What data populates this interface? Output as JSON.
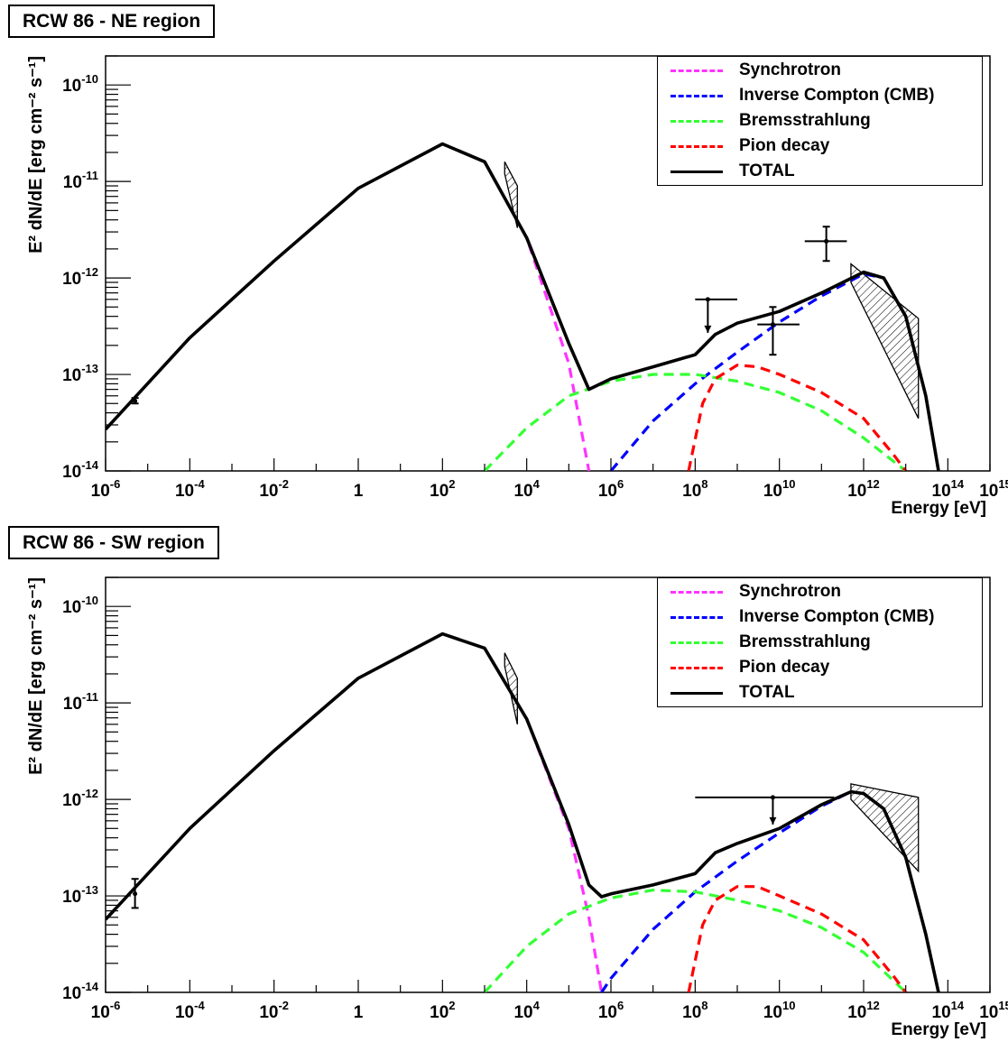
{
  "colors": {
    "synchrotron": "#ff33ff",
    "inverse_compton": "#0000ff",
    "bremsstrahlung": "#33ff33",
    "pion_decay": "#ff0000",
    "total": "#000000"
  },
  "chart_data": [
    {
      "type": "line",
      "title": "RCW 86 - NE region",
      "xlabel": "Energy [eV]",
      "ylabel": "E² dN/dE [erg cm⁻² s⁻¹]",
      "xscale": "log",
      "yscale": "log",
      "xlim": [
        1e-06,
        1000000000000000.0
      ],
      "ylim": [
        1e-14,
        2e-10
      ],
      "x_ticks": [
        {
          "v": 1e-06,
          "base": "10",
          "exp": "-6"
        },
        {
          "v": 0.0001,
          "base": "10",
          "exp": "-4"
        },
        {
          "v": 0.01,
          "base": "10",
          "exp": "-2"
        },
        {
          "v": 1,
          "base": "1",
          "exp": ""
        },
        {
          "v": 100.0,
          "base": "10",
          "exp": "2"
        },
        {
          "v": 10000.0,
          "base": "10",
          "exp": "4"
        },
        {
          "v": 1000000.0,
          "base": "10",
          "exp": "6"
        },
        {
          "v": 100000000.0,
          "base": "10",
          "exp": "8"
        },
        {
          "v": 10000000000.0,
          "base": "10",
          "exp": "10"
        },
        {
          "v": 1000000000000.0,
          "base": "10",
          "exp": "12"
        },
        {
          "v": 100000000000000.0,
          "base": "10",
          "exp": "14"
        },
        {
          "v": 1000000000000000.0,
          "base": "10",
          "exp": "15"
        }
      ],
      "y_ticks": [
        {
          "v": 1e-14,
          "base": "10",
          "exp": "-14"
        },
        {
          "v": 1e-13,
          "base": "10",
          "exp": "-13"
        },
        {
          "v": 1e-12,
          "base": "10",
          "exp": "-12"
        },
        {
          "v": 1e-11,
          "base": "10",
          "exp": "-11"
        },
        {
          "v": 1e-10,
          "base": "10",
          "exp": "-10"
        }
      ],
      "legend": {
        "position": "top-right",
        "entries": [
          {
            "name": "Synchrotron",
            "color": "#ff33ff",
            "style": "dashed"
          },
          {
            "name": "Inverse Compton (CMB)",
            "color": "#0000ff",
            "style": "dashed"
          },
          {
            "name": "Bremsstrahlung",
            "color": "#33ff33",
            "style": "dashed"
          },
          {
            "name": "Pion decay",
            "color": "#ff0000",
            "style": "dashed"
          },
          {
            "name": "TOTAL",
            "color": "#000000",
            "style": "solid"
          }
        ]
      },
      "series": [
        {
          "name": "Synchrotron",
          "style": "dashed",
          "color": "#ff33ff",
          "x": [
            1e-06,
            0.0001,
            0.01,
            1,
            100,
            1000,
            10000,
            100000,
            300000
          ],
          "y": [
            2.7e-14,
            2.4e-13,
            1.5e-12,
            8.5e-12,
            2.45e-11,
            1.6e-11,
            2.6e-12,
            1.3e-13,
            1e-14
          ]
        },
        {
          "name": "Inverse Compton (CMB)",
          "style": "dashed",
          "color": "#0000ff",
          "x": [
            1000000.0,
            10000000.0,
            100000000.0,
            1000000000.0,
            10000000000.0,
            100000000000.0,
            1000000000000.0,
            3000000000000.0,
            10000000000000.0,
            30000000000000.0,
            60000000000000.0
          ],
          "y": [
            1e-14,
            3.3e-14,
            8e-14,
            1.7e-13,
            3.5e-13,
            6.5e-13,
            1.1e-12,
            1e-12,
            4e-13,
            6e-14,
            1e-14
          ]
        },
        {
          "name": "Bremsstrahlung",
          "style": "dashed",
          "color": "#33ff33",
          "x": [
            1000,
            10000,
            100000,
            1000000.0,
            10000000.0,
            100000000.0,
            1000000000.0,
            10000000000.0,
            100000000000.0,
            1000000000000.0,
            10000000000000.0
          ],
          "y": [
            1e-14,
            2.8e-14,
            6e-14,
            8.5e-14,
            1e-13,
            1e-13,
            8.5e-14,
            6.5e-14,
            4.2e-14,
            2.2e-14,
            1e-14
          ]
        },
        {
          "name": "Pion decay",
          "style": "dashed",
          "color": "#ff0000",
          "x": [
            70000000.0,
            150000000.0,
            300000000.0,
            1000000000.0,
            3000000000.0,
            10000000000.0,
            100000000000.0,
            1000000000000.0,
            5000000000000.0,
            10000000000000.0
          ],
          "y": [
            1e-14,
            5e-14,
            9e-14,
            1.25e-13,
            1.2e-13,
            1e-13,
            6.5e-14,
            3.5e-14,
            1.5e-14,
            1e-14
          ]
        },
        {
          "name": "TOTAL",
          "style": "solid",
          "color": "#000000",
          "x": [
            1e-06,
            0.0001,
            0.01,
            1,
            100,
            1000,
            10000,
            100000,
            300000,
            1000000.0,
            10000000.0,
            100000000.0,
            300000000.0,
            1000000000.0,
            10000000000.0,
            100000000000.0,
            1000000000000.0,
            3000000000000.0,
            10000000000000.0,
            30000000000000.0,
            60000000000000.0
          ],
          "y": [
            2.7e-14,
            2.4e-13,
            1.5e-12,
            8.5e-12,
            2.45e-11,
            1.6e-11,
            2.6e-12,
            2.1e-13,
            7e-14,
            9e-14,
            1.2e-13,
            1.6e-13,
            2.6e-13,
            3.4e-13,
            4.5e-13,
            7e-13,
            1.15e-12,
            1e-12,
            4e-13,
            6e-14,
            1e-14
          ]
        }
      ],
      "data_points": [
        {
          "x": 5e-06,
          "y": 5.3e-14,
          "x_lo": 4.5e-06,
          "x_hi": 5.6e-06,
          "y_lo": 5e-14,
          "y_hi": 5.7e-14,
          "upper_limit": false
        },
        {
          "x": 200000000.0,
          "y": 6e-13,
          "x_lo": 100000000.0,
          "x_hi": 1000000000.0,
          "y_lo": 2.7e-13,
          "y_hi": 6e-13,
          "upper_limit": true
        },
        {
          "x": 7000000000.0,
          "y": 3.3e-13,
          "x_lo": 3000000000.0,
          "x_hi": 30000000000.0,
          "y_lo": 1.6e-13,
          "y_hi": 5e-13,
          "upper_limit": false
        },
        {
          "x": 130000000000.0,
          "y": 2.4e-12,
          "x_lo": 40000000000.0,
          "x_hi": 400000000000.0,
          "y_lo": 1.5e-12,
          "y_hi": 3.4e-12,
          "upper_limit": false
        }
      ],
      "bowties": [
        {
          "x1": 3000,
          "x2": 6000,
          "y1_lo": 1.2e-11,
          "y1_hi": 1.6e-11,
          "y2_lo": 3.3e-12,
          "y2_hi": 9e-12
        },
        {
          "x1": 500000000000.0,
          "x2": 20000000000000.0,
          "y1_lo": 9e-13,
          "y1_hi": 1.4e-12,
          "y2_lo": 3.5e-14,
          "y2_hi": 3.8e-13
        }
      ]
    },
    {
      "type": "line",
      "title": "RCW 86 - SW region",
      "xlabel": "Energy [eV]",
      "ylabel": "E² dN/dE [erg cm⁻² s⁻¹]",
      "xscale": "log",
      "yscale": "log",
      "xlim": [
        1e-06,
        1000000000000000.0
      ],
      "ylim": [
        1e-14,
        2e-10
      ],
      "x_ticks": [
        {
          "v": 1e-06,
          "base": "10",
          "exp": "-6"
        },
        {
          "v": 0.0001,
          "base": "10",
          "exp": "-4"
        },
        {
          "v": 0.01,
          "base": "10",
          "exp": "-2"
        },
        {
          "v": 1,
          "base": "1",
          "exp": ""
        },
        {
          "v": 100.0,
          "base": "10",
          "exp": "2"
        },
        {
          "v": 10000.0,
          "base": "10",
          "exp": "4"
        },
        {
          "v": 1000000.0,
          "base": "10",
          "exp": "6"
        },
        {
          "v": 100000000.0,
          "base": "10",
          "exp": "8"
        },
        {
          "v": 10000000000.0,
          "base": "10",
          "exp": "10"
        },
        {
          "v": 1000000000000.0,
          "base": "10",
          "exp": "12"
        },
        {
          "v": 100000000000000.0,
          "base": "10",
          "exp": "14"
        },
        {
          "v": 1000000000000000.0,
          "base": "10",
          "exp": "15"
        }
      ],
      "y_ticks": [
        {
          "v": 1e-14,
          "base": "10",
          "exp": "-14"
        },
        {
          "v": 1e-13,
          "base": "10",
          "exp": "-13"
        },
        {
          "v": 1e-12,
          "base": "10",
          "exp": "-12"
        },
        {
          "v": 1e-11,
          "base": "10",
          "exp": "-11"
        },
        {
          "v": 1e-10,
          "base": "10",
          "exp": "-10"
        }
      ],
      "legend": {
        "position": "top-right",
        "entries": [
          {
            "name": "Synchrotron",
            "color": "#ff33ff",
            "style": "dashed"
          },
          {
            "name": "Inverse Compton (CMB)",
            "color": "#0000ff",
            "style": "dashed"
          },
          {
            "name": "Bremsstrahlung",
            "color": "#33ff33",
            "style": "dashed"
          },
          {
            "name": "Pion decay",
            "color": "#ff0000",
            "style": "dashed"
          },
          {
            "name": "TOTAL",
            "color": "#000000",
            "style": "solid"
          }
        ]
      },
      "series": [
        {
          "name": "Synchrotron",
          "style": "dashed",
          "color": "#ff33ff",
          "x": [
            1e-06,
            0.0001,
            0.01,
            1,
            100,
            1000,
            10000,
            100000,
            300000,
            600000
          ],
          "y": [
            5.7e-14,
            5e-13,
            3.2e-12,
            1.8e-11,
            5.2e-11,
            3.7e-11,
            6.8e-12,
            5e-13,
            6e-14,
            1e-14
          ]
        },
        {
          "name": "Inverse Compton (CMB)",
          "style": "dashed",
          "color": "#0000ff",
          "x": [
            600000.0,
            1000000.0,
            10000000.0,
            100000000.0,
            1000000000.0,
            10000000000.0,
            100000000000.0,
            500000000000.0,
            1000000000000.0,
            3000000000000.0,
            10000000000000.0,
            30000000000000.0,
            60000000000000.0
          ],
          "y": [
            1e-14,
            1.4e-14,
            4.5e-14,
            1.1e-13,
            2.3e-13,
            4.5e-13,
            8.5e-13,
            1.2e-12,
            1.15e-12,
            8e-13,
            2.5e-13,
            4e-14,
            1e-14
          ]
        },
        {
          "name": "Bremsstrahlung",
          "style": "dashed",
          "color": "#33ff33",
          "x": [
            1000,
            10000,
            100000,
            1000000.0,
            10000000.0,
            100000000.0,
            1000000000.0,
            10000000000.0,
            100000000000.0,
            1000000000000.0,
            10000000000000.0
          ],
          "y": [
            1e-14,
            3e-14,
            6.5e-14,
            9.5e-14,
            1.15e-13,
            1.1e-13,
            9e-14,
            7e-14,
            4.7e-14,
            2.6e-14,
            1e-14
          ]
        },
        {
          "name": "Pion decay",
          "style": "dashed",
          "color": "#ff0000",
          "x": [
            70000000.0,
            150000000.0,
            300000000.0,
            1000000000.0,
            3000000000.0,
            10000000000.0,
            100000000000.0,
            1000000000000.0,
            5000000000000.0,
            10000000000000.0
          ],
          "y": [
            1e-14,
            5e-14,
            9e-14,
            1.25e-13,
            1.25e-13,
            1e-13,
            6.5e-14,
            3.5e-14,
            1.5e-14,
            1e-14
          ]
        },
        {
          "name": "TOTAL",
          "style": "solid",
          "color": "#000000",
          "x": [
            1e-06,
            0.0001,
            0.01,
            1,
            100,
            1000,
            10000,
            100000,
            300000,
            600000,
            1000000.0,
            10000000.0,
            100000000.0,
            300000000.0,
            1000000000.0,
            10000000000.0,
            100000000000.0,
            500000000000.0,
            1000000000000.0,
            3000000000000.0,
            10000000000000.0,
            30000000000000.0,
            60000000000000.0
          ],
          "y": [
            5.7e-14,
            5e-13,
            3.2e-12,
            1.8e-11,
            5.2e-11,
            3.7e-11,
            6.8e-12,
            5.5e-13,
            1.3e-13,
            9.8e-14,
            1.05e-13,
            1.3e-13,
            1.7e-13,
            2.8e-13,
            3.5e-13,
            5e-13,
            8.8e-13,
            1.2e-12,
            1.15e-12,
            8e-13,
            2.5e-13,
            4e-14,
            1e-14
          ]
        }
      ],
      "data_points": [
        {
          "x": 5e-06,
          "y": 1.05e-13,
          "x_lo": 4.5e-06,
          "x_hi": 5.6e-06,
          "y_lo": 7.5e-14,
          "y_hi": 1.5e-13,
          "upper_limit": false
        },
        {
          "x": 7000000000.0,
          "y": 1.05e-12,
          "x_lo": 100000000.0,
          "x_hi": 200000000000.0,
          "y_lo": 5.5e-13,
          "y_hi": 1.05e-12,
          "upper_limit": true
        }
      ],
      "bowties": [
        {
          "x1": 3000,
          "x2": 6000,
          "y1_lo": 2.4e-11,
          "y1_hi": 3.3e-11,
          "y2_lo": 6e-12,
          "y2_hi": 1.8e-11
        },
        {
          "x1": 500000000000.0,
          "x2": 20000000000000.0,
          "y1_lo": 1e-12,
          "y1_hi": 1.45e-12,
          "y2_lo": 1.8e-13,
          "y2_hi": 1.05e-12
        }
      ]
    }
  ]
}
